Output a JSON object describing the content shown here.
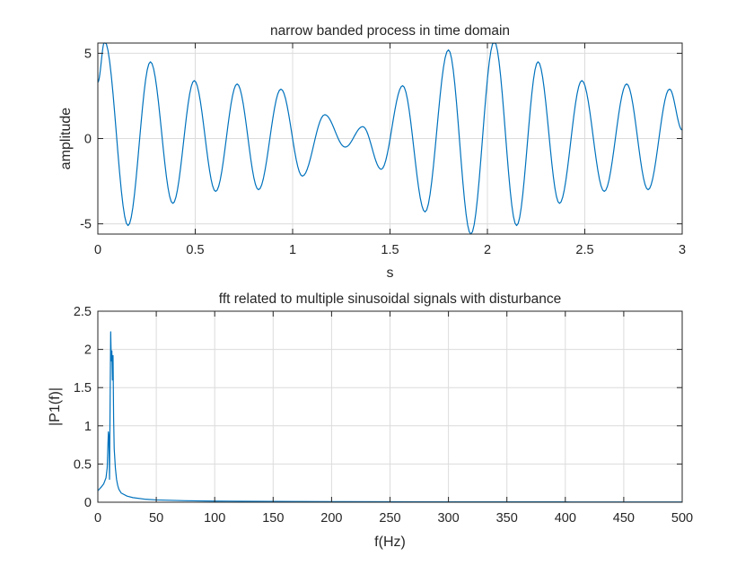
{
  "accent_color": "#0072BD",
  "chart_data": [
    {
      "type": "line",
      "title": "narrow banded process in time domain",
      "xlabel": "s",
      "ylabel": "amplitude",
      "xlim": [
        0,
        3
      ],
      "ylim": [
        -5.6,
        5.6
      ],
      "xticks": [
        0,
        0.5,
        1,
        1.5,
        2,
        2.5,
        3
      ],
      "xtick_labels": [
        "0",
        "0.5",
        "1",
        "1.5",
        "2",
        "2.5",
        "3"
      ],
      "yticks": [
        -5,
        0,
        5
      ],
      "ytick_labels": [
        "-5",
        "0",
        "5"
      ],
      "grid": true,
      "series": [
        {
          "color": "#0072BD",
          "x": [
            0,
            0.035,
            0.155,
            0.27,
            0.385,
            0.495,
            0.605,
            0.715,
            0.825,
            0.94,
            1.05,
            1.165,
            1.27,
            1.36,
            1.455,
            1.565,
            1.68,
            1.8,
            1.915,
            2.035,
            2.15,
            2.26,
            2.37,
            2.485,
            2.6,
            2.715,
            2.825,
            2.935,
            3.0
          ],
          "y": [
            3.3,
            5.7,
            -5.1,
            4.5,
            -3.8,
            3.4,
            -3.1,
            3.2,
            -3.0,
            2.9,
            -2.2,
            1.4,
            -0.5,
            0.7,
            -1.8,
            3.1,
            -4.3,
            5.2,
            -5.6,
            5.7,
            -5.1,
            4.5,
            -3.8,
            3.4,
            -3.1,
            3.2,
            -3.0,
            2.9,
            0.5
          ]
        }
      ]
    },
    {
      "type": "line",
      "title": "fft related to multiple sinusoidal signals with disturbance",
      "xlabel": "f(Hz)",
      "ylabel": "|P1(f)|",
      "xlim": [
        0,
        500
      ],
      "ylim": [
        0,
        2.5
      ],
      "xticks": [
        0,
        50,
        100,
        150,
        200,
        250,
        300,
        350,
        400,
        450,
        500
      ],
      "xtick_labels": [
        "0",
        "50",
        "100",
        "150",
        "200",
        "250",
        "300",
        "350",
        "400",
        "450",
        "500"
      ],
      "yticks": [
        0,
        0.5,
        1,
        1.5,
        2,
        2.5
      ],
      "ytick_labels": [
        "0",
        "0.5",
        "1",
        "1.5",
        "2",
        "2.5"
      ],
      "grid": true,
      "series": [
        {
          "color": "#0072BD",
          "x": [
            0,
            3,
            5,
            7,
            8,
            9,
            9.5,
            10,
            10.5,
            11,
            11.5,
            12,
            12.5,
            13,
            13.5,
            14,
            15,
            16,
            17,
            18,
            20,
            25,
            30,
            40,
            50,
            75,
            100,
            150,
            200,
            300,
            400,
            500
          ],
          "y": [
            0.15,
            0.2,
            0.24,
            0.32,
            0.45,
            0.92,
            0.85,
            0.3,
            1.3,
            2.23,
            1.85,
            1.98,
            1.6,
            1.92,
            1.1,
            0.7,
            0.45,
            0.3,
            0.22,
            0.17,
            0.12,
            0.08,
            0.06,
            0.04,
            0.03,
            0.02,
            0.015,
            0.01,
            0.008,
            0.005,
            0.004,
            0.003
          ]
        }
      ]
    }
  ]
}
